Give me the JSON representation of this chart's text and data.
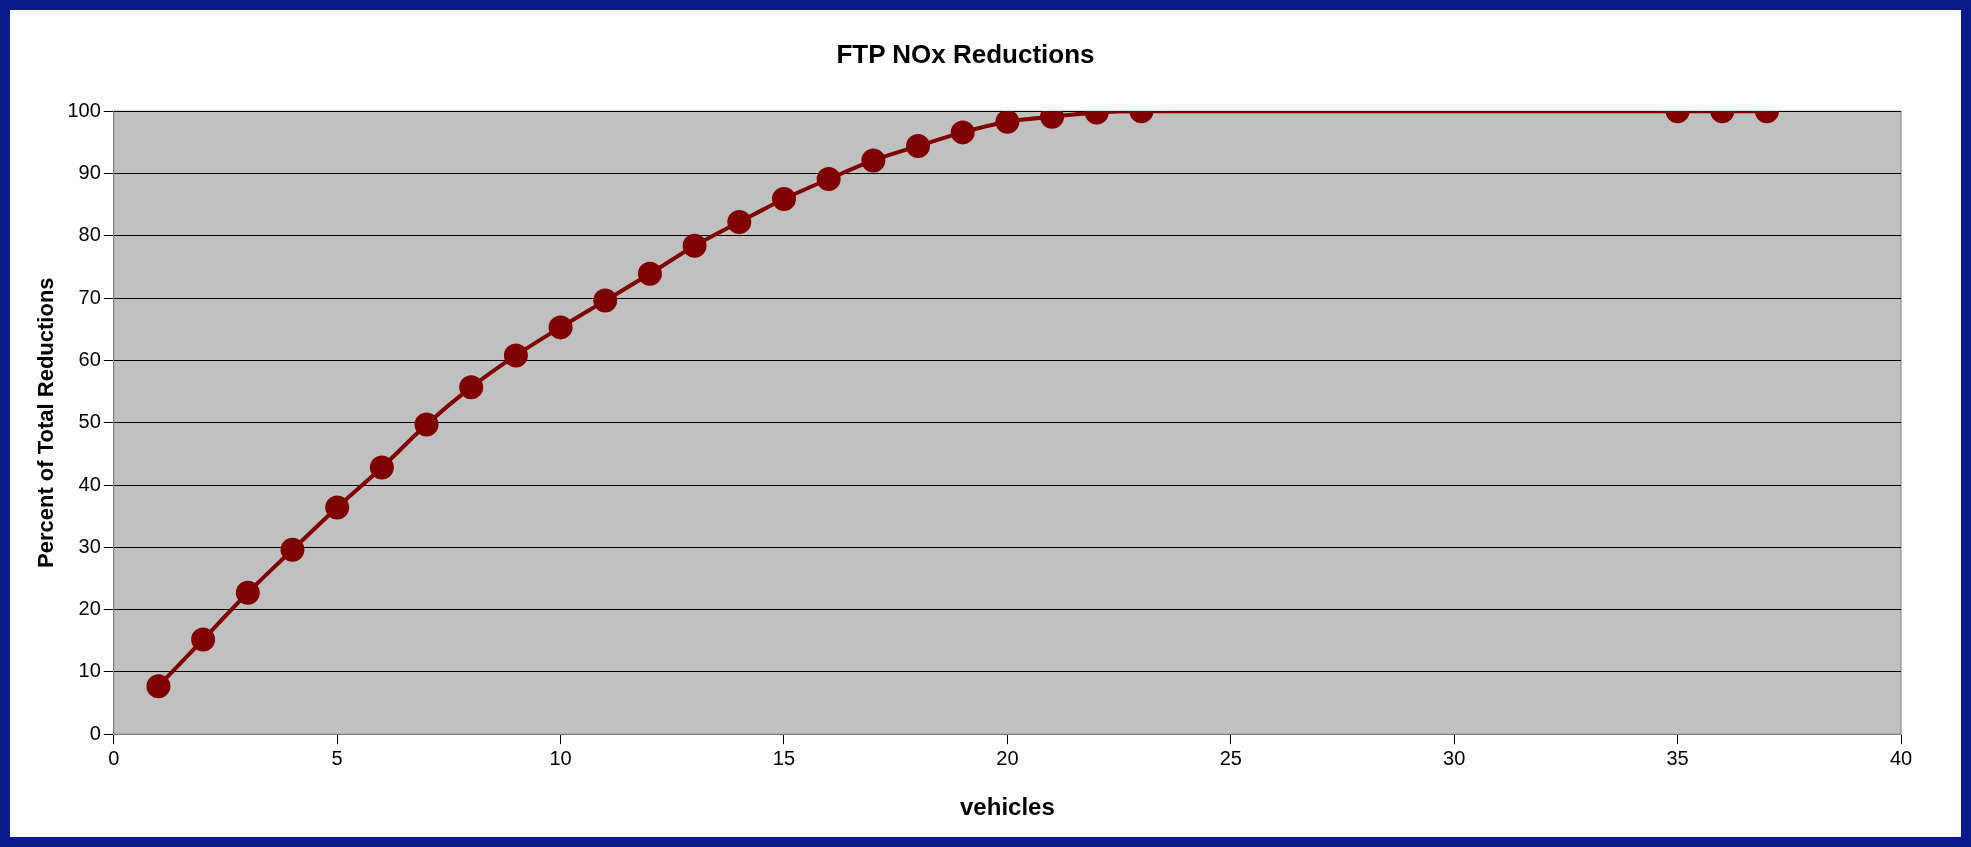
{
  "chart_data": {
    "type": "line",
    "title": "FTP NOx Reductions",
    "xlabel": "vehicles",
    "ylabel": "Percent of Total Reductions",
    "x": [
      1,
      2,
      3,
      4,
      5,
      6,
      7,
      8,
      9,
      10,
      11,
      12,
      13,
      14,
      15,
      16,
      17,
      18,
      19,
      20,
      21,
      22,
      23,
      35,
      36,
      37
    ],
    "series": [
      {
        "color": "#800000",
        "values": [
          7.7,
          15.2,
          22.7,
          29.6,
          36.4,
          42.8,
          49.7,
          55.7,
          60.8,
          65.3,
          69.6,
          73.9,
          78.4,
          82.2,
          85.9,
          89.1,
          92.1,
          94.4,
          96.6,
          98.3,
          99.1,
          99.8,
          100,
          100,
          100,
          100
        ]
      }
    ],
    "xlim": [
      0,
      40
    ],
    "xticks": [
      0,
      5,
      10,
      15,
      20,
      25,
      30,
      35,
      40
    ],
    "ylim": [
      0,
      100
    ],
    "yticks": [
      0,
      10,
      20,
      30,
      40,
      50,
      60,
      70,
      80,
      90,
      100
    ],
    "grid": "y",
    "legend": false,
    "marker": "circle",
    "line_style": "solid"
  }
}
